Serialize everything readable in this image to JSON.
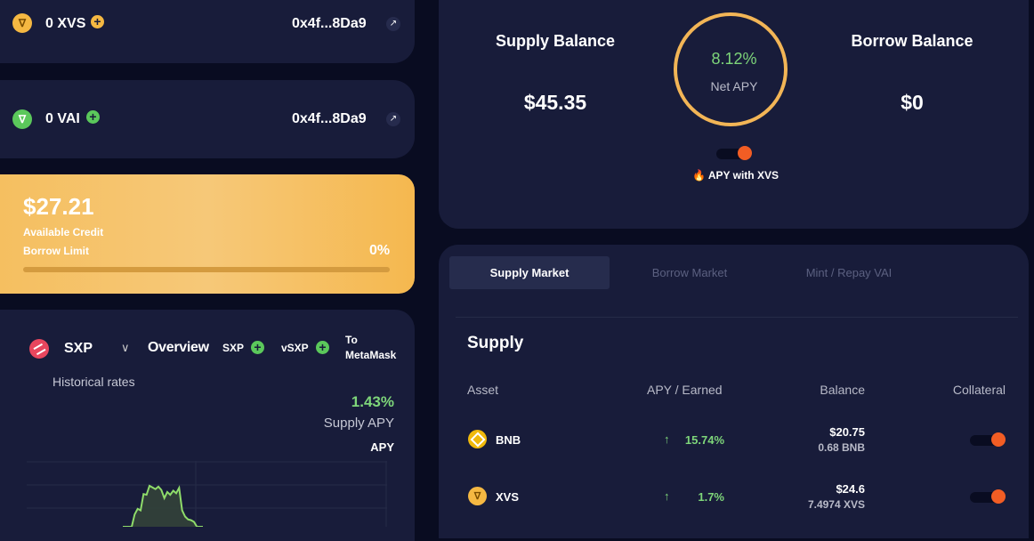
{
  "tokens": [
    {
      "label": "0 XVS",
      "address": "0x4f...8Da9",
      "icon": "xvs-icon",
      "color": "#f5b842"
    },
    {
      "label": "0 VAI",
      "address": "0x4f...8Da9",
      "icon": "vai-icon",
      "color": "#5bc85b"
    }
  ],
  "credit": {
    "amount": "$27.21",
    "available_label": "Available Credit",
    "limit_label": "Borrow Limit",
    "percent": "0%",
    "progress": 0
  },
  "market": {
    "symbol": "SXP",
    "overview": "Overview",
    "add_token": "SXP",
    "add_vtoken": "vSXP",
    "metamask_line1": "To",
    "metamask_line2": "MetaMask",
    "historical": "Historical rates",
    "supply_apy_value": "1.43%",
    "supply_apy_label": "Supply APY",
    "apy_label": "APY",
    "apy_history": [
      0,
      0,
      0,
      0,
      0.3,
      0.44,
      0.4,
      0.8,
      0.78,
      1.0,
      0.96,
      0.92,
      0.98,
      0.9,
      0.7,
      0.85,
      0.78,
      0.88,
      0.82,
      0.95,
      0.4,
      0.25,
      0.18,
      0.16,
      0.12,
      0,
      0,
      0
    ]
  },
  "balances": {
    "supply_label": "Supply Balance",
    "supply_value": "$45.35",
    "borrow_label": "Borrow Balance",
    "borrow_value": "$0",
    "net_apy_value": "8.12%",
    "net_apy_label": "Net APY",
    "apy_with_xvs": "🔥 APY with XVS"
  },
  "tabs": [
    "Supply Market",
    "Borrow Market",
    "Mint / Repay VAI"
  ],
  "supply": {
    "title": "Supply",
    "headers": [
      "Asset",
      "APY / Earned",
      "Balance",
      "Collateral"
    ],
    "rows": [
      {
        "asset": "BNB",
        "apy": "15.74%",
        "balance_usd": "$20.75",
        "balance_token": "0.68 BNB",
        "icon": "bnb-icon",
        "icon_color": "#f0b90b"
      },
      {
        "asset": "XVS",
        "apy": "1.7%",
        "balance_usd": "$24.6",
        "balance_token": "7.4974 XVS",
        "icon": "xvs-icon",
        "icon_color": "#f5b842"
      }
    ]
  },
  "colors": {
    "accent_green": "#7ed67a",
    "accent_orange": "#f5b556",
    "toggle_red": "#f25d24",
    "card_bg": "#181c3a"
  }
}
